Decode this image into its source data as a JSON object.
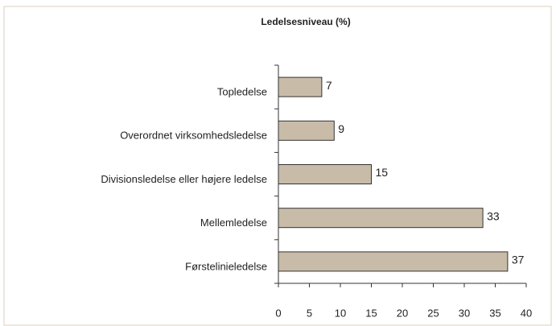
{
  "chart_data": {
    "type": "bar",
    "orientation": "horizontal",
    "title": "Ledelsesniveau (%)",
    "categories": [
      "Topledelse",
      "Overordnet virksomhedsledelse",
      "Divisionsledelse eller højere ledelse",
      "Mellemledelse",
      "Førstelinieledelse"
    ],
    "values": [
      7,
      9,
      15,
      33,
      37
    ],
    "color": "#c8bca8",
    "xlim": [
      0,
      40
    ],
    "xticks": [
      0,
      5,
      10,
      15,
      20,
      25,
      30,
      35,
      40
    ],
    "grid": false
  }
}
